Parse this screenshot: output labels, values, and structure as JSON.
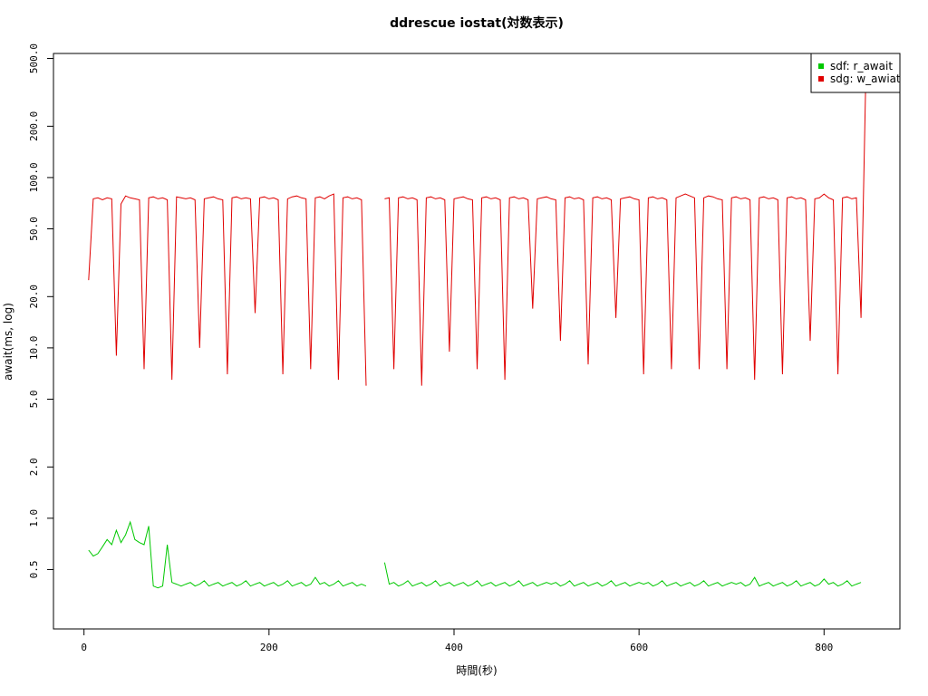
{
  "chart_data": {
    "type": "line",
    "title": "ddrescue iostat(対数表示)",
    "xlabel": "時間(秒)",
    "ylabel": "await(ms, log)",
    "log_y": true,
    "legend": "topright",
    "xlim": [
      -33,
      882
    ],
    "ylim": [
      0.224,
      535
    ],
    "xticks": [
      0,
      200,
      400,
      600,
      800
    ],
    "yticks": [
      0.5,
      {
        "value": 1,
        "label": "1.0"
      },
      {
        "value": 2,
        "label": "2.0"
      },
      {
        "value": 5,
        "label": "5.0"
      },
      {
        "value": 10,
        "label": "10.0"
      },
      {
        "value": 20,
        "label": "20.0"
      },
      {
        "value": 50,
        "label": "50.0"
      },
      {
        "value": 100,
        "label": "100.0"
      },
      {
        "value": 200,
        "label": "200.0"
      },
      {
        "value": 500,
        "label": "500.0"
      }
    ],
    "x": [
      5,
      10,
      15,
      20,
      25,
      30,
      35,
      40,
      45,
      50,
      55,
      60,
      65,
      70,
      75,
      80,
      85,
      90,
      95,
      100,
      105,
      110,
      115,
      120,
      125,
      130,
      135,
      140,
      145,
      150,
      155,
      160,
      165,
      170,
      175,
      180,
      185,
      190,
      195,
      200,
      205,
      210,
      215,
      220,
      225,
      230,
      235,
      240,
      245,
      250,
      255,
      260,
      265,
      270,
      275,
      280,
      285,
      290,
      295,
      300,
      305,
      310,
      315,
      320,
      325,
      330,
      335,
      340,
      345,
      350,
      355,
      360,
      365,
      370,
      375,
      380,
      385,
      390,
      395,
      400,
      405,
      410,
      415,
      420,
      425,
      430,
      435,
      440,
      445,
      450,
      455,
      460,
      465,
      470,
      475,
      480,
      485,
      490,
      495,
      500,
      505,
      510,
      515,
      520,
      525,
      530,
      535,
      540,
      545,
      550,
      555,
      560,
      565,
      570,
      575,
      580,
      585,
      590,
      595,
      600,
      605,
      610,
      615,
      620,
      625,
      630,
      635,
      640,
      645,
      650,
      655,
      660,
      665,
      670,
      675,
      680,
      685,
      690,
      695,
      700,
      705,
      710,
      715,
      720,
      725,
      730,
      735,
      740,
      745,
      750,
      755,
      760,
      765,
      770,
      775,
      780,
      785,
      790,
      795,
      800,
      805,
      810,
      815,
      820,
      825,
      830,
      835,
      840,
      845
    ],
    "series": [
      {
        "name": "sdf: r_await",
        "color": "#00c800",
        "values": [
          0.65,
          0.6,
          0.62,
          0.68,
          0.75,
          0.7,
          0.85,
          0.72,
          0.8,
          0.95,
          0.75,
          0.72,
          0.7,
          0.9,
          0.4,
          0.39,
          0.4,
          0.7,
          0.42,
          0.41,
          0.4,
          0.41,
          0.42,
          0.4,
          0.41,
          0.43,
          0.4,
          0.41,
          0.42,
          0.4,
          0.41,
          0.42,
          0.4,
          0.41,
          0.43,
          0.4,
          0.41,
          0.42,
          0.4,
          0.41,
          0.42,
          0.4,
          0.41,
          0.43,
          0.4,
          0.41,
          0.42,
          0.4,
          0.41,
          0.45,
          0.41,
          0.42,
          0.4,
          0.41,
          0.43,
          0.4,
          0.41,
          0.42,
          0.4,
          0.41,
          0.4,
          null,
          null,
          null,
          0.55,
          0.41,
          0.42,
          0.4,
          0.41,
          0.43,
          0.4,
          0.41,
          0.42,
          0.4,
          0.41,
          0.43,
          0.4,
          0.41,
          0.42,
          0.4,
          0.41,
          0.42,
          0.4,
          0.41,
          0.43,
          0.4,
          0.41,
          0.42,
          0.4,
          0.41,
          0.42,
          0.4,
          0.41,
          0.43,
          0.4,
          0.41,
          0.42,
          0.4,
          0.41,
          0.42,
          0.41,
          0.42,
          0.4,
          0.41,
          0.43,
          0.4,
          0.41,
          0.42,
          0.4,
          0.41,
          0.42,
          0.4,
          0.41,
          0.43,
          0.4,
          0.41,
          0.42,
          0.4,
          0.41,
          0.42,
          0.41,
          0.42,
          0.4,
          0.41,
          0.43,
          0.4,
          0.41,
          0.42,
          0.4,
          0.41,
          0.42,
          0.4,
          0.41,
          0.43,
          0.4,
          0.41,
          0.42,
          0.4,
          0.41,
          0.42,
          0.41,
          0.42,
          0.4,
          0.41,
          0.45,
          0.4,
          0.41,
          0.42,
          0.4,
          0.41,
          0.42,
          0.4,
          0.41,
          0.43,
          0.4,
          0.41,
          0.42,
          0.4,
          0.41,
          0.44,
          0.41,
          0.42,
          0.4,
          0.41,
          0.43,
          0.4,
          0.41,
          0.42,
          null
        ]
      },
      {
        "name": "sdg: w_awiat",
        "color": "#e00000",
        "values": [
          25,
          75,
          76,
          74,
          76,
          75,
          9,
          70,
          78,
          76,
          75,
          74,
          7.5,
          76,
          77,
          75,
          76,
          74,
          6.5,
          77,
          76,
          75,
          76,
          74,
          10,
          75,
          76,
          77,
          75,
          74,
          7,
          76,
          77,
          75,
          76,
          75,
          16,
          76,
          77,
          75,
          76,
          74,
          7,
          75,
          77,
          78,
          76,
          75,
          7.5,
          76,
          77,
          75,
          78,
          80,
          6.5,
          76,
          77,
          75,
          76,
          74,
          6,
          null,
          null,
          null,
          75,
          76,
          7.5,
          76,
          77,
          75,
          76,
          74,
          6,
          76,
          77,
          75,
          76,
          74,
          9.5,
          75,
          76,
          77,
          75,
          74,
          7.5,
          76,
          77,
          75,
          76,
          74,
          6.5,
          76,
          77,
          75,
          76,
          74,
          17,
          75,
          76,
          77,
          75,
          74,
          11,
          76,
          77,
          75,
          76,
          74,
          8,
          76,
          77,
          75,
          76,
          74,
          15,
          75,
          76,
          77,
          75,
          74,
          7,
          76,
          77,
          75,
          76,
          74,
          7.5,
          76,
          78,
          80,
          78,
          76,
          7.5,
          76,
          78,
          77,
          75,
          74,
          7.5,
          76,
          77,
          75,
          76,
          74,
          6.5,
          76,
          77,
          75,
          76,
          74,
          7,
          76,
          77,
          75,
          76,
          74,
          11,
          75,
          76,
          80,
          76,
          74,
          7,
          76,
          77,
          75,
          76,
          15,
          350
        ]
      }
    ]
  }
}
